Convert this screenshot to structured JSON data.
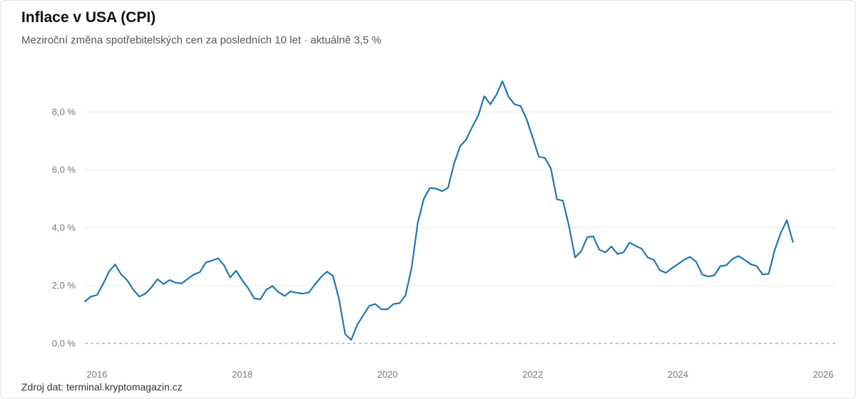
{
  "header": {
    "title": "Inflace v USA (CPI)",
    "subtitle": "Meziroční změna spotřebitelských cen za posledních 10 let · aktuálně 3,5 %"
  },
  "footer": {
    "source": "Zdroj dat: terminal.kryptomagazin.cz"
  },
  "chart_data": {
    "type": "line",
    "title": "Inflace v USA (CPI)",
    "xlabel": "",
    "ylabel": "",
    "x_start": "2015-11",
    "x_step": "1 month",
    "xlim": [
      "2015-11",
      "2026-03"
    ],
    "ylim": [
      0,
      9.5
    ],
    "grid": true,
    "legend": "none",
    "line_color": "#1f77b4",
    "zero_line": "dashed",
    "y_ticks": [
      {
        "value": 0,
        "label": "0,0 %"
      },
      {
        "value": 2,
        "label": "2,0 %"
      },
      {
        "value": 4,
        "label": "4,0 %"
      },
      {
        "value": 6,
        "label": "6,0 %"
      },
      {
        "value": 8,
        "label": "8,0 %"
      }
    ],
    "x_ticks": [
      {
        "date": "2016-01",
        "label": "2016"
      },
      {
        "date": "2018-01",
        "label": "2018"
      },
      {
        "date": "2020-01",
        "label": "2020"
      },
      {
        "date": "2022-01",
        "label": "2022"
      },
      {
        "date": "2024-01",
        "label": "2024"
      },
      {
        "date": "2026-01",
        "label": "2026"
      }
    ],
    "series": [
      {
        "values": [
          1.45,
          1.62,
          1.67,
          2.05,
          2.48,
          2.73,
          2.38,
          2.18,
          1.85,
          1.62,
          1.72,
          1.94,
          2.22,
          2.05,
          2.19,
          2.1,
          2.07,
          2.23,
          2.38,
          2.46,
          2.8,
          2.86,
          2.94,
          2.7,
          2.28,
          2.51,
          2.18,
          1.9,
          1.55,
          1.52,
          1.86,
          1.98,
          1.77,
          1.64,
          1.8,
          1.75,
          1.72,
          1.76,
          2.03,
          2.29,
          2.48,
          2.33,
          1.53,
          0.33,
          0.12,
          0.64,
          0.98,
          1.3,
          1.36,
          1.18,
          1.18,
          1.36,
          1.39,
          1.67,
          2.62,
          4.16,
          4.99,
          5.37,
          5.35,
          5.26,
          5.37,
          6.21,
          6.81,
          7.04,
          7.48,
          7.87,
          8.54,
          8.26,
          8.59,
          9.06,
          8.52,
          8.26,
          8.2,
          7.74,
          7.11,
          6.45,
          6.41,
          6.04,
          4.98,
          4.93,
          4.05,
          2.97,
          3.18,
          3.67,
          3.7,
          3.24,
          3.14,
          3.35,
          3.09,
          3.15,
          3.48,
          3.37,
          3.27,
          2.97,
          2.89,
          2.53,
          2.44,
          2.6,
          2.74,
          2.89,
          2.99,
          2.82,
          2.38,
          2.31,
          2.35,
          2.67,
          2.7,
          2.92,
          3.02,
          2.89,
          2.74,
          2.67,
          2.38,
          2.41,
          3.24,
          3.82,
          4.25,
          3.51
        ]
      }
    ]
  }
}
